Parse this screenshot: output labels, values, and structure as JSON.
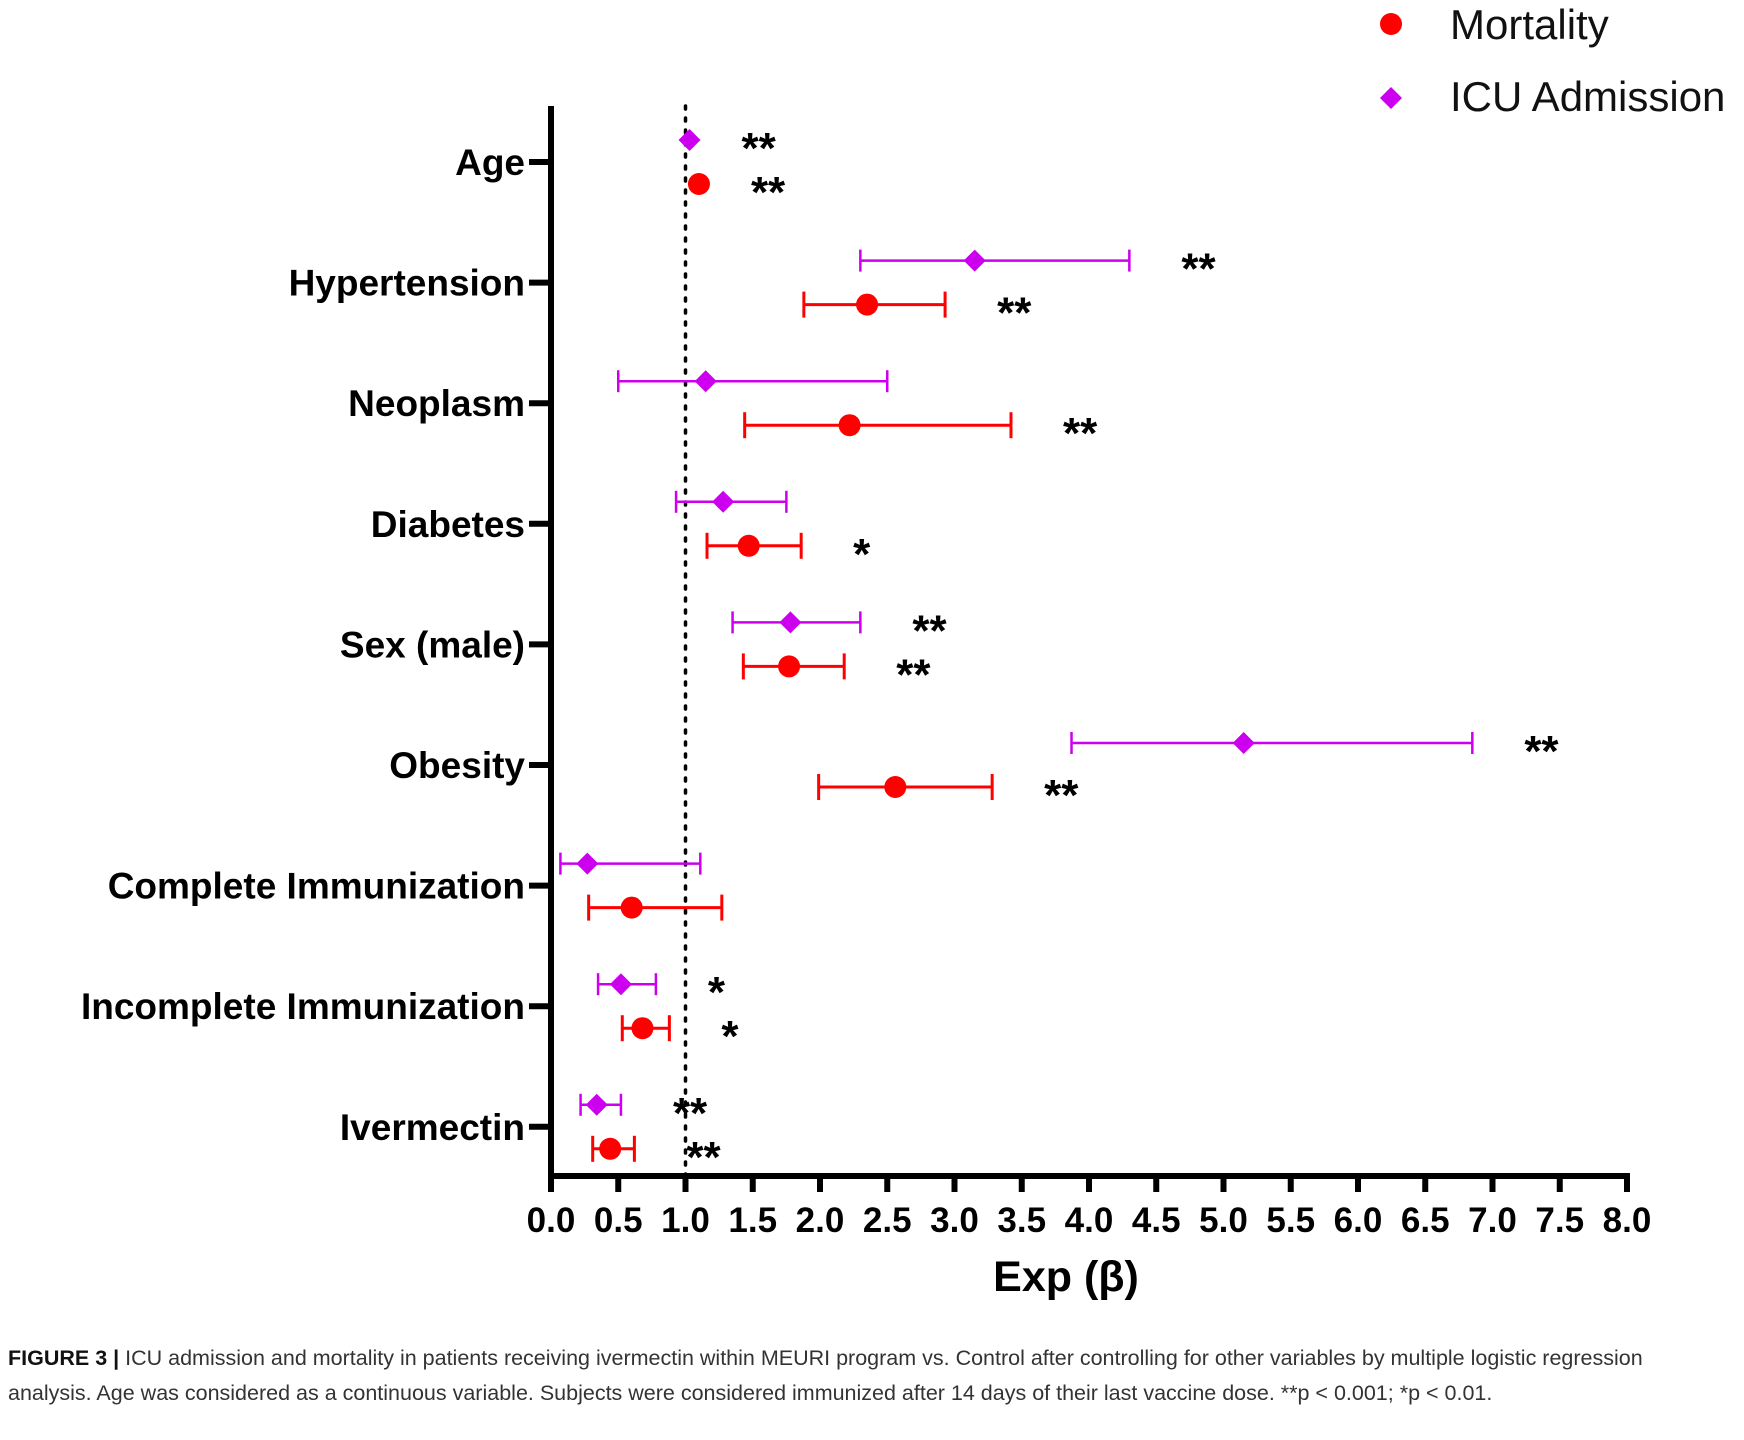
{
  "chart_data": {
    "type": "forest",
    "xlabel": "Exp (β)",
    "xlim": [
      0,
      8
    ],
    "x_ticks": [
      "0.0",
      "0.5",
      "1.0",
      "1.5",
      "2.0",
      "2.5",
      "3.0",
      "3.5",
      "4.0",
      "4.5",
      "5.0",
      "5.5",
      "6.0",
      "6.5",
      "7.0",
      "7.5",
      "8.0"
    ],
    "reference_line": 1.0,
    "categories": [
      "Age",
      "Hypertension",
      "Neoplasm",
      "Diabetes",
      "Sex (male)",
      "Obesity",
      "Complete Immunization",
      "Incomplete Immunization",
      "Ivermectin"
    ],
    "series": [
      {
        "name": "ICU Admission",
        "marker": "diamond",
        "color": "#cc00ee",
        "points": [
          {
            "estimate": 1.03,
            "lower": null,
            "upper": null,
            "sig": "**"
          },
          {
            "estimate": 3.15,
            "lower": 2.3,
            "upper": 4.3,
            "sig": "**"
          },
          {
            "estimate": 1.15,
            "lower": 0.5,
            "upper": 2.5,
            "sig": ""
          },
          {
            "estimate": 1.28,
            "lower": 0.93,
            "upper": 1.75,
            "sig": ""
          },
          {
            "estimate": 1.78,
            "lower": 1.35,
            "upper": 2.3,
            "sig": "**"
          },
          {
            "estimate": 5.15,
            "lower": 3.87,
            "upper": 6.85,
            "sig": "**"
          },
          {
            "estimate": 0.27,
            "lower": 0.07,
            "upper": 1.11,
            "sig": ""
          },
          {
            "estimate": 0.52,
            "lower": 0.35,
            "upper": 0.78,
            "sig": "*"
          },
          {
            "estimate": 0.34,
            "lower": 0.22,
            "upper": 0.52,
            "sig": "**"
          }
        ]
      },
      {
        "name": "Mortality",
        "marker": "circle",
        "color": "#ff0000",
        "points": [
          {
            "estimate": 1.1,
            "lower": null,
            "upper": null,
            "sig": "**"
          },
          {
            "estimate": 2.35,
            "lower": 1.88,
            "upper": 2.93,
            "sig": "**"
          },
          {
            "estimate": 2.22,
            "lower": 1.44,
            "upper": 3.42,
            "sig": "**"
          },
          {
            "estimate": 1.47,
            "lower": 1.16,
            "upper": 1.86,
            "sig": "*"
          },
          {
            "estimate": 1.77,
            "lower": 1.43,
            "upper": 2.18,
            "sig": "**"
          },
          {
            "estimate": 2.56,
            "lower": 1.99,
            "upper": 3.28,
            "sig": "**"
          },
          {
            "estimate": 0.6,
            "lower": 0.28,
            "upper": 1.27,
            "sig": ""
          },
          {
            "estimate": 0.68,
            "lower": 0.53,
            "upper": 0.88,
            "sig": "*"
          },
          {
            "estimate": 0.44,
            "lower": 0.31,
            "upper": 0.62,
            "sig": "**"
          }
        ]
      }
    ],
    "legend": [
      {
        "label": "Mortality",
        "marker": "circle",
        "color": "#ff0000"
      },
      {
        "label": "ICU Admission",
        "marker": "diamond",
        "color": "#cc00ee"
      }
    ],
    "legend_position": "top-right",
    "grid": false
  },
  "caption": {
    "label": "FIGURE 3 |",
    "text": "ICU admission and mortality in patients receiving ivermectin within MEURI program vs. Control after controlling for other variables by multiple logistic regression analysis. Age was considered as a continuous variable. Subjects were considered immunized after 14 days of their last vaccine dose. **p < 0.001; *p < 0.01."
  }
}
